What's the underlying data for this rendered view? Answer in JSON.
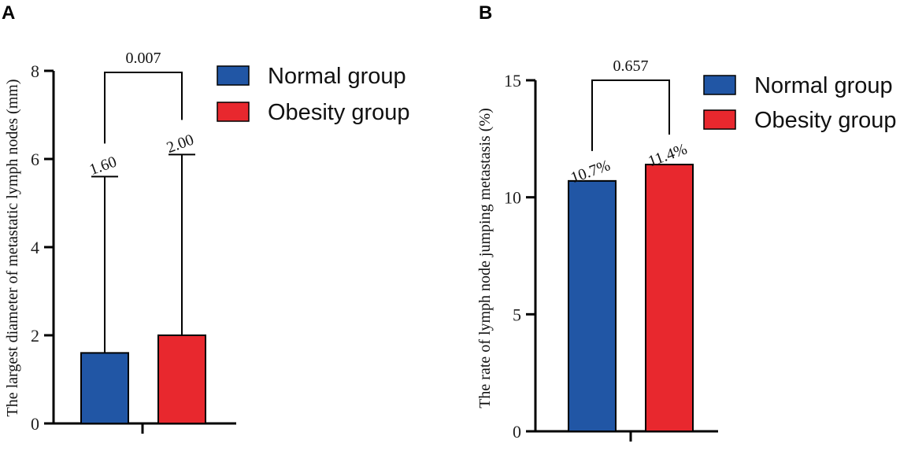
{
  "colors": {
    "normal": "#2156a5",
    "obesity": "#e8282e",
    "axis": "#000000"
  },
  "chart_data": [
    {
      "panel": "A",
      "type": "bar",
      "categories": [
        "Normal group",
        "Obesity group"
      ],
      "values": [
        1.6,
        2.0
      ],
      "error_upper": [
        5.6,
        6.1
      ],
      "data_labels": [
        "1.60",
        "2.00"
      ],
      "ylabel": "The largest diameter of metastatic lymph nodes (mm)",
      "ylim": [
        0,
        8
      ],
      "yticks": [
        "0",
        "2",
        "4",
        "6",
        "8"
      ],
      "significance": "0.007",
      "legend": [
        "Normal group",
        "Obesity group"
      ]
    },
    {
      "panel": "B",
      "type": "bar",
      "categories": [
        "Normal group",
        "Obesity group"
      ],
      "values": [
        10.7,
        11.4
      ],
      "data_labels": [
        "10.7%",
        "11.4%"
      ],
      "ylabel": "The rate of lymph node jumping metastasis (%)",
      "ylim": [
        0,
        15
      ],
      "yticks": [
        "0",
        "5",
        "10",
        "15"
      ],
      "significance": "0.657",
      "legend": [
        "Normal group",
        "Obesity group"
      ]
    }
  ]
}
